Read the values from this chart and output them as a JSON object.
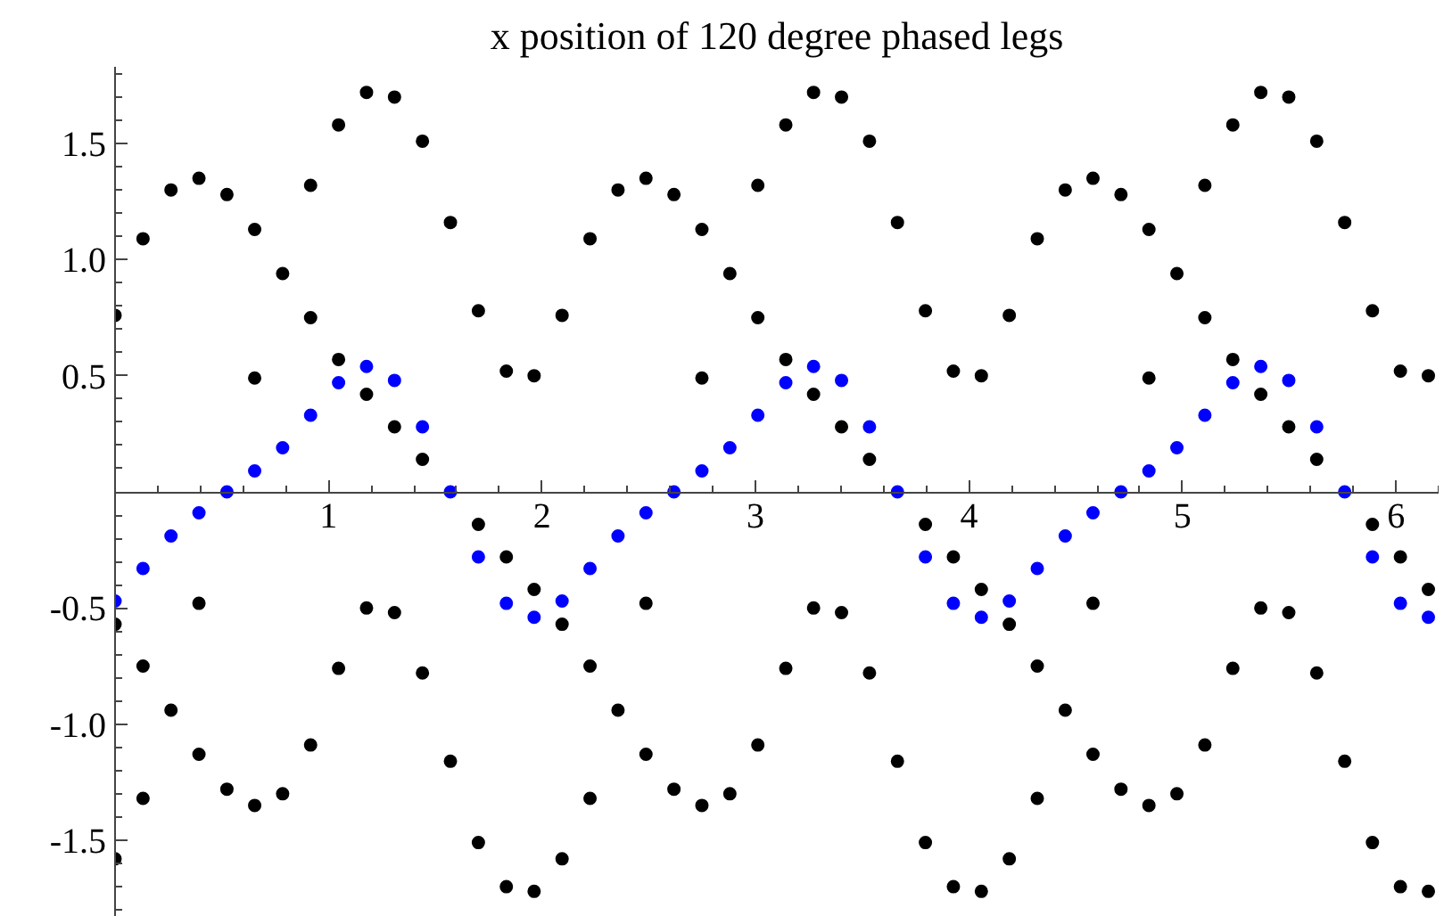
{
  "chart_data": {
    "type": "scatter",
    "title": "x position of 120 degree phased legs",
    "marker": "circle",
    "xlim": [
      0,
      6.2
    ],
    "ylim": [
      -1.83,
      1.83
    ],
    "xticks": [
      1,
      2,
      3,
      4,
      5,
      6
    ],
    "yticks": [
      -1.5,
      {
        "value": -1,
        "label": "-1.0"
      },
      -0.5,
      0.5,
      {
        "value": 1,
        "label": "1.0"
      },
      1.5
    ],
    "x": [
      0,
      0.131,
      0.262,
      0.393,
      0.524,
      0.654,
      0.785,
      0.916,
      1.047,
      1.178,
      1.309,
      1.44,
      1.571,
      1.702,
      1.833,
      1.963,
      2.094,
      2.225,
      2.356,
      2.487,
      2.618,
      2.749,
      2.88,
      3.011,
      3.142,
      3.272,
      3.403,
      3.534,
      3.665,
      3.796,
      3.927,
      4.058,
      4.189,
      4.32,
      4.451,
      4.581,
      4.712,
      4.843,
      4.974,
      5.105,
      5.236,
      5.367,
      5.498,
      5.629,
      5.76,
      5.89,
      6.021,
      6.152
    ],
    "series": [
      {
        "color": "#000000",
        "x": [
          0,
          0,
          0,
          0.131,
          0.131,
          0.131,
          0.262,
          0.262,
          0.393,
          0.393,
          0.393,
          0.524,
          0.524,
          0.654,
          0.654,
          0.654,
          0.785,
          0.785,
          0.916,
          0.916,
          0.916,
          1.047,
          1.047,
          1.047,
          1.178,
          1.178,
          1.178,
          1.309,
          1.309,
          1.309,
          1.44,
          1.44,
          1.44,
          1.571,
          1.571,
          1.702,
          1.702,
          1.702,
          1.833,
          1.833,
          1.833,
          1.963,
          1.963,
          1.963,
          2.094,
          2.094,
          2.094,
          2.225,
          2.225,
          2.225,
          2.356,
          2.356,
          2.487,
          2.487,
          2.487,
          2.618,
          2.618,
          2.749,
          2.749,
          2.749,
          2.88,
          2.88,
          3.011,
          3.011,
          3.011,
          3.142,
          3.142,
          3.142,
          3.272,
          3.272,
          3.272,
          3.403,
          3.403,
          3.403,
          3.534,
          3.534,
          3.534,
          3.665,
          3.665,
          3.796,
          3.796,
          3.796,
          3.927,
          3.927,
          3.927,
          4.058,
          4.058,
          4.058,
          4.189,
          4.189,
          4.189,
          4.32,
          4.32,
          4.32,
          4.451,
          4.451,
          4.581,
          4.581,
          4.581,
          4.712,
          4.712,
          4.843,
          4.843,
          4.843,
          4.974,
          4.974,
          5.105,
          5.105,
          5.105,
          5.236,
          5.236,
          5.236,
          5.367,
          5.367,
          5.367,
          5.498,
          5.498,
          5.498,
          5.629,
          5.629,
          5.629,
          5.76,
          5.76,
          5.89,
          5.89,
          5.89,
          6.021,
          6.021,
          6.021,
          6.152,
          6.152,
          6.152
        ],
        "values": [
          0.76,
          -0.57,
          -1.58,
          1.09,
          -0.75,
          -1.32,
          1.3,
          -0.94,
          1.35,
          -0.48,
          -1.13,
          1.28,
          -1.28,
          1.13,
          0.49,
          -1.35,
          0.94,
          -1.3,
          1.32,
          0.75,
          -1.09,
          1.58,
          0.57,
          -0.76,
          1.72,
          0.42,
          -0.5,
          1.7,
          0.28,
          -0.52,
          1.51,
          0.14,
          -0.78,
          1.16,
          -1.16,
          0.78,
          -0.14,
          -1.51,
          0.52,
          -0.28,
          -1.7,
          0.5,
          -0.42,
          -1.72,
          0.76,
          -0.57,
          -1.58,
          1.09,
          -0.75,
          -1.32,
          1.3,
          -0.94,
          1.35,
          -0.48,
          -1.13,
          1.28,
          -1.28,
          1.13,
          0.49,
          -1.35,
          0.94,
          -1.3,
          1.32,
          0.75,
          -1.09,
          1.58,
          0.57,
          -0.76,
          1.72,
          0.42,
          -0.5,
          1.7,
          0.28,
          -0.52,
          1.51,
          0.14,
          -0.78,
          1.16,
          -1.16,
          0.78,
          -0.14,
          -1.51,
          0.52,
          -0.28,
          -1.7,
          0.5,
          -0.42,
          -1.72,
          0.76,
          -0.57,
          -1.58,
          1.09,
          -0.75,
          -1.32,
          1.3,
          -0.94,
          1.35,
          -0.48,
          -1.13,
          1.28,
          -1.28,
          1.13,
          0.49,
          -1.35,
          0.94,
          -1.3,
          1.32,
          0.75,
          -1.09,
          1.58,
          0.57,
          -0.76,
          1.72,
          0.42,
          -0.5,
          1.7,
          0.28,
          -0.52,
          1.51,
          0.14,
          -0.78,
          1.16,
          -1.16,
          0.78,
          -0.14,
          -1.51,
          0.52,
          -0.28,
          -1.7,
          0.5,
          -0.42,
          -1.72
        ]
      },
      {
        "color": "#0000ff",
        "values": [
          -0.47,
          -0.33,
          -0.19,
          -0.09,
          0,
          0.09,
          0.19,
          0.33,
          0.47,
          0.54,
          0.48,
          0.28,
          0,
          -0.28,
          -0.48,
          -0.54,
          -0.47,
          -0.33,
          -0.19,
          -0.09,
          0,
          0.09,
          0.19,
          0.33,
          0.47,
          0.54,
          0.48,
          0.28,
          0,
          -0.28,
          -0.48,
          -0.54,
          -0.47,
          -0.33,
          -0.19,
          -0.09,
          0,
          0.09,
          0.19,
          0.33,
          0.47,
          0.54,
          0.48,
          0.28,
          0,
          -0.28,
          -0.48,
          -0.54
        ]
      }
    ]
  }
}
